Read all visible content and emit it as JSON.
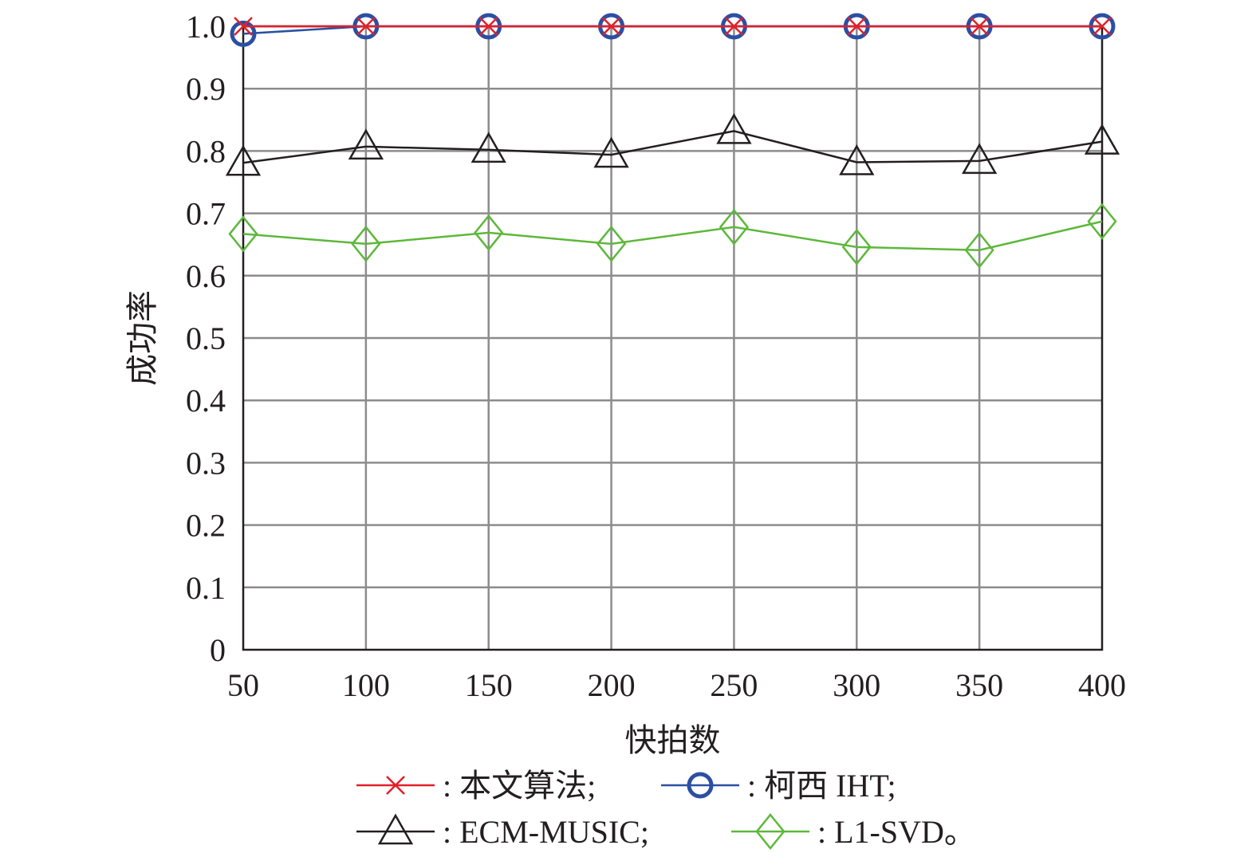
{
  "chart_data": {
    "type": "line",
    "xlabel": "快拍数",
    "ylabel": "成功率",
    "x": [
      50,
      100,
      150,
      200,
      250,
      300,
      350,
      400
    ],
    "xlim": [
      50,
      400
    ],
    "ylim": [
      0,
      1.0
    ],
    "x_ticks": [
      "50",
      "100",
      "150",
      "200",
      "250",
      "300",
      "350",
      "400"
    ],
    "y_ticks": [
      "0",
      "0.1",
      "0.2",
      "0.3",
      "0.4",
      "0.5",
      "0.6",
      "0.7",
      "0.8",
      "0.9",
      "1.0"
    ],
    "grid": true,
    "legend_position": "bottom",
    "series": [
      {
        "name": "本文算法",
        "legend_label": ": 本文算法;",
        "marker": "x",
        "color": "#e0202a",
        "values": [
          1.0,
          1.0,
          1.0,
          1.0,
          1.0,
          1.0,
          1.0,
          1.0
        ]
      },
      {
        "name": "柯西 IHT",
        "legend_label": ": 柯西 IHT;",
        "marker": "circle",
        "color": "#2c4fa3",
        "values": [
          0.988,
          1.0,
          1.0,
          1.0,
          1.0,
          1.0,
          1.0,
          1.0
        ]
      },
      {
        "name": "ECM-MUSIC",
        "legend_label": ": ECM-MUSIC;",
        "marker": "triangle",
        "color": "#231f20",
        "values": [
          0.781,
          0.807,
          0.802,
          0.794,
          0.832,
          0.782,
          0.784,
          0.815
        ]
      },
      {
        "name": "L1-SVD",
        "legend_label": ": L1-SVD。",
        "marker": "diamond",
        "color": "#5db83a",
        "values": [
          0.667,
          0.651,
          0.669,
          0.651,
          0.678,
          0.646,
          0.641,
          0.687
        ]
      }
    ]
  }
}
